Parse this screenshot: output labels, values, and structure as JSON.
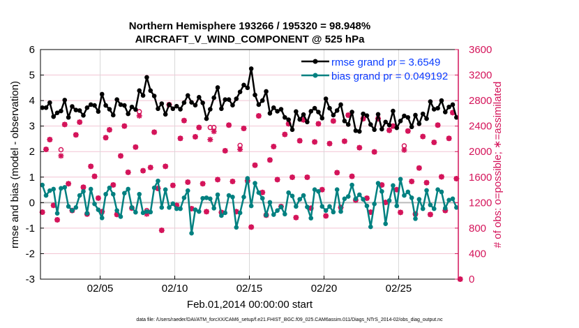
{
  "chart_data": {
    "type": "line",
    "title": [
      "Northern Hemisphere 193266 / 195320 = 98.948%",
      "AIRCRAFT_V_WIND_COMPONENT @ 525 hPa"
    ],
    "xlabel": "Feb.01,2014 00:00:00 start",
    "ylabel": "rmse and bias (model - observation)",
    "ylabel_right": "# of obs: o=possible; ∗=assimilated",
    "footer": "data file: /Users/raeder/DAI/ATM_forcXX/CAM6_setup/f.e21.FHIST_BGC.f09_025.CAM6assim.011/Diags_NTrS_2014-02/obs_diag_output.nc",
    "x_units": "days since Feb.01,2014 00:00:00",
    "xlim": [
      0,
      28
    ],
    "x_start": 0.125,
    "x_step": 0.25,
    "x_ticks": [
      {
        "value": 4,
        "label": "02/05"
      },
      {
        "value": 9,
        "label": "02/10"
      },
      {
        "value": 14,
        "label": "02/15"
      },
      {
        "value": 19,
        "label": "02/20"
      },
      {
        "value": 24,
        "label": "02/25"
      }
    ],
    "ylim": [
      -3,
      6
    ],
    "y_ticks": [
      -3,
      -2,
      -1,
      0,
      1,
      2,
      3,
      4,
      5,
      6
    ],
    "ylim_right": [
      0,
      3600
    ],
    "y_ticks_right": [
      0,
      400,
      800,
      1200,
      1600,
      2000,
      2400,
      2800,
      3200,
      3600
    ],
    "grid": true,
    "legend_placement": "top-right",
    "colors": {
      "rmse": "#000000",
      "bias": "#008080",
      "obs": "#d4145a",
      "legend_text": "#0a3cff",
      "grid_h": "#f2c4d3",
      "grid_v": "#d8d8d8"
    },
    "series": [
      {
        "name": "rmse grand pr = 3.6549",
        "key": "rmse",
        "values": [
          3.72,
          3.72,
          3.92,
          3.37,
          3.52,
          3.59,
          4.02,
          3.34,
          3.77,
          3.63,
          3.61,
          3.42,
          3.72,
          3.84,
          3.81,
          3.57,
          4.25,
          3.81,
          3.66,
          3.43,
          4.04,
          3.84,
          3.81,
          3.48,
          3.75,
          3.65,
          4.39,
          4.2,
          4.91,
          4.39,
          4.18,
          3.68,
          3.88,
          3.46,
          3.84,
          3.68,
          3.78,
          3.66,
          3.92,
          4.2,
          3.93,
          3.82,
          4.13,
          3.91,
          3.29,
          3.66,
          4.11,
          4.51,
          3.68,
          4.04,
          4.04,
          3.82,
          4.07,
          4.34,
          4.61,
          4.5,
          5.25,
          4.22,
          3.84,
          4.0,
          4.36,
          3.5,
          3.72,
          3.58,
          3.66,
          3.34,
          3.25,
          2.86,
          3.57,
          3.26,
          3.45,
          3.16,
          3.58,
          3.7,
          3.55,
          3.31,
          4.07,
          3.7,
          3.43,
          3.61,
          3.84,
          3.2,
          3.06,
          3.55,
          2.82,
          2.79,
          3.48,
          3.41,
          3.06,
          2.86,
          3.46,
          2.88,
          3.16,
          3.04,
          3.59,
          2.93,
          3.2,
          3.4,
          3.34,
          2.97,
          3.43,
          3.09,
          3.48,
          3.29,
          3.96,
          3.66,
          3.7,
          4.0,
          3.55,
          3.75,
          3.84,
          3.34
        ]
      },
      {
        "name": "bias grand pr = 0.049192",
        "key": "bias",
        "values": [
          0.69,
          0.28,
          0.47,
          0.53,
          -0.42,
          0.56,
          0.6,
          -0.15,
          -0.31,
          -0.19,
          0.28,
          0.44,
          -0.42,
          0.53,
          -0.05,
          -0.28,
          -0.6,
          0.33,
          0.58,
          0.33,
          -0.31,
          -0.55,
          0.37,
          0.53,
          -0.19,
          -0.38,
          0.33,
          -0.4,
          -0.35,
          -0.37,
          0.58,
          0.85,
          -0.19,
          0.51,
          -0.19,
          -0.04,
          -0.24,
          -0.24,
          0.19,
          0.47,
          -1.2,
          -0.28,
          -0.35,
          0.17,
          0.19,
          0.15,
          -0.22,
          0.31,
          -0.51,
          -0.4,
          0.28,
          0.22,
          -0.97,
          -0.4,
          0.22,
          0.95,
          -0.13,
          0.76,
          0.39,
          0.17,
          -0.49,
          0.01,
          -0.47,
          -0.31,
          -0.17,
          -0.45,
          0.39,
          0.26,
          -0.15,
          0.13,
          0.28,
          -0.17,
          -0.61,
          0.51,
          0.44,
          -0.15,
          -0.31,
          -0.15,
          -0.37,
          0.51,
          -0.35,
          0.15,
          0.24,
          0.69,
          0.15,
          0.31,
          0.13,
          -0.13,
          -0.95,
          -0.05,
          0.76,
          0.44,
          -0.83,
          0.08,
          0.67,
          -0.13,
          0.92,
          0.28,
          0.42,
          0.19,
          -0.63,
          0.13,
          -0.24,
          0.48,
          -0.09,
          -0.24,
          0.51,
          0.42,
          -0.22,
          0.1,
          0.15,
          -0.19
        ]
      },
      {
        "name": "obs assimilated",
        "key": "assimilated",
        "axis": "right",
        "values": [
          1050,
          2035,
          2188,
          1157,
          930,
          1933,
          2425,
          1496,
          1076,
          2262,
          2462,
          1441,
          1021,
          1769,
          1612,
          1271,
          1058,
          2218,
          2342,
          1477,
          1014,
          1933,
          2400,
          1675,
          1113,
          2071,
          2560,
          1700,
          1021,
          1751,
          2305,
          1422,
          766,
          1769,
          2735,
          1470,
          1157,
          2207,
          2487,
          1521,
          1105,
          2232,
          2378,
          1496,
          1058,
          2188,
          2316,
          1561,
          1047,
          2013,
          2415,
          1532,
          1058,
          2035,
          2363,
          1543,
          817,
          1787,
          2560,
          1360,
          1003,
          1868,
          2079,
          1561,
          1138,
          2269,
          2436,
          1598,
          966,
          2170,
          2498,
          1598,
          1113,
          2152,
          2436,
          1403,
          992,
          2126,
          2480,
          1670,
          1124,
          2163,
          2571,
          1612,
          1240,
          2061,
          2516,
          1269,
          1050,
          1995,
          2516,
          1477,
          1204,
          2334,
          2400,
          1403,
          1047,
          2024,
          2323,
          1532,
          1021,
          1743,
          2236,
          1513,
          1014,
          2145,
          2415,
          1605,
          1076,
          2207,
          2611,
          1576,
          0
        ]
      },
      {
        "name": "obs possible",
        "key": "possible",
        "axis": "right",
        "values": [
          1050,
          2035,
          2188,
          1157,
          930,
          2030,
          2425,
          1496,
          1076,
          2262,
          2462,
          1441,
          1021,
          1769,
          1612,
          1271,
          1058,
          2218,
          2342,
          1477,
          1014,
          1933,
          2400,
          1675,
          1113,
          2071,
          2626,
          1700,
          1076,
          1751,
          2305,
          1422,
          766,
          1769,
          2735,
          1470,
          1157,
          2207,
          2487,
          1521,
          1105,
          2232,
          2378,
          1496,
          1058,
          2378,
          2378,
          1561,
          1047,
          2013,
          2415,
          1532,
          1058,
          2097,
          2363,
          1543,
          817,
          1787,
          2560,
          1360,
          1003,
          1868,
          2079,
          1561,
          1138,
          2269,
          2436,
          1598,
          966,
          2170,
          2498,
          1598,
          1113,
          2152,
          2436,
          1403,
          992,
          2126,
          2480,
          1670,
          1124,
          2163,
          2571,
          1612,
          1240,
          2061,
          2516,
          1269,
          1050,
          1995,
          2516,
          1477,
          1204,
          2334,
          2400,
          1403,
          1047,
          2090,
          2323,
          1532,
          1021,
          1743,
          2236,
          1513,
          1014,
          2145,
          2415,
          1605,
          1076,
          2207,
          2611,
          1576,
          0
        ]
      }
    ]
  }
}
